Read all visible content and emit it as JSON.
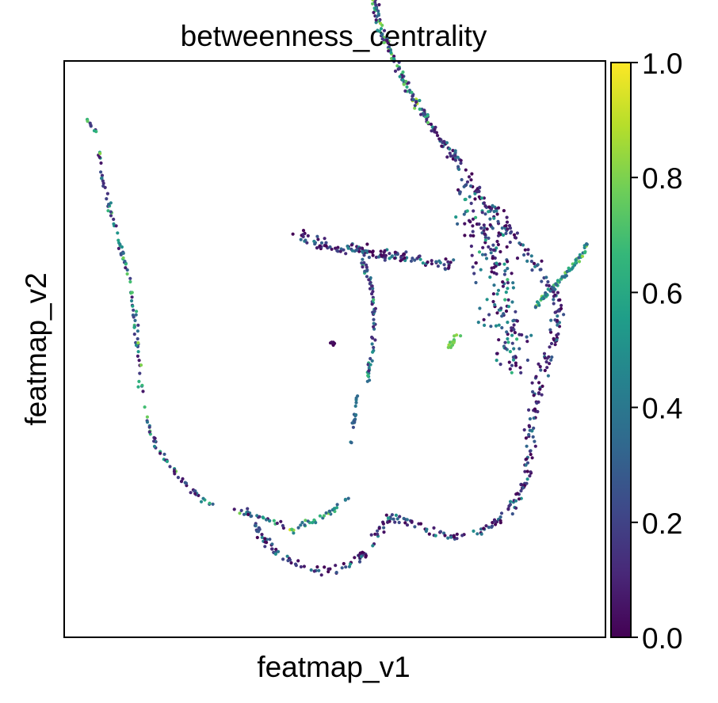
{
  "chart_data": {
    "type": "scatter",
    "title": "betweenness_centrality",
    "xlabel": "featmap_v1",
    "ylabel": "featmap_v2",
    "xlim": [
      0,
      100
    ],
    "ylim": [
      0,
      100
    ],
    "xticks_shown": false,
    "yticks_shown": false,
    "grid": false,
    "colorbar": {
      "colormap": "viridis",
      "range": [
        0.0,
        1.0
      ],
      "ticks": [
        0.0,
        0.2,
        0.4,
        0.6,
        0.8,
        1.0
      ],
      "tick_labels": [
        "0.0",
        "0.2",
        "0.4",
        "0.6",
        "0.8",
        "1.0"
      ],
      "placement": "right"
    },
    "colors": {
      "viridis_stops": [
        "#440154",
        "#482878",
        "#3e4989",
        "#31688e",
        "#26828e",
        "#1f9e89",
        "#35b779",
        "#6ece58",
        "#b5de2b",
        "#fde725"
      ]
    },
    "series": [
      {
        "structure": "left arm down to bottom curve",
        "path": [
          [
            4.5,
            90
          ],
          [
            6,
            87
          ],
          [
            6.5,
            84
          ],
          [
            7,
            80
          ],
          [
            8,
            76
          ],
          [
            9,
            72
          ],
          [
            10,
            69
          ],
          [
            11,
            66
          ],
          [
            12,
            62
          ],
          [
            12.7,
            58
          ],
          [
            13.2,
            54
          ],
          [
            13.6,
            50
          ],
          [
            14,
            46
          ],
          [
            14.5,
            42
          ],
          [
            15.2,
            38
          ],
          [
            16.5,
            34
          ],
          [
            18.5,
            31
          ],
          [
            20.5,
            28.5
          ],
          [
            23,
            26
          ],
          [
            25.5,
            24
          ],
          [
            28,
            22.5
          ],
          [
            31,
            22
          ],
          [
            34,
            21.5
          ],
          [
            37,
            20.5
          ],
          [
            40,
            19.5
          ],
          [
            42,
            18.5
          ]
        ],
        "count": 170,
        "spread": 0.35,
        "value_range": [
          0.05,
          0.85
        ]
      },
      {
        "structure": "bottom loop lower lobe",
        "path": [
          [
            34,
            21.5
          ],
          [
            36,
            18
          ],
          [
            39,
            15
          ],
          [
            42,
            13
          ],
          [
            45,
            12
          ],
          [
            48,
            11.5
          ],
          [
            51,
            11.8
          ],
          [
            54,
            13
          ],
          [
            56,
            15
          ],
          [
            57.5,
            17.5
          ],
          [
            58.5,
            19
          ],
          [
            60,
            20.5
          ],
          [
            62,
            20.5
          ],
          [
            64,
            20
          ],
          [
            66,
            19
          ],
          [
            68,
            18
          ],
          [
            71,
            17.5
          ],
          [
            74,
            17.8
          ],
          [
            77,
            18.5
          ],
          [
            80,
            20
          ],
          [
            82,
            22
          ],
          [
            84,
            24.5
          ],
          [
            85.5,
            27.5
          ]
        ],
        "count": 190,
        "spread": 0.6,
        "value_range": [
          0.0,
          0.55
        ]
      },
      {
        "structure": "bottom loop upper bridge",
        "path": [
          [
            42,
            18.5
          ],
          [
            45,
            20
          ],
          [
            48,
            21
          ],
          [
            50,
            22.5
          ],
          [
            52,
            24
          ],
          [
            53,
            24.5
          ]
        ],
        "count": 35,
        "spread": 0.5,
        "value_range": [
          0.3,
          0.95
        ]
      },
      {
        "structure": "right lobe outer edge",
        "path": [
          [
            85.5,
            27.5
          ],
          [
            86.2,
            32
          ],
          [
            86.5,
            36
          ],
          [
            87,
            40
          ],
          [
            88,
            44
          ],
          [
            89,
            48
          ],
          [
            90.5,
            52
          ],
          [
            91.5,
            56
          ],
          [
            91,
            59
          ],
          [
            89.5,
            61.5
          ],
          [
            88,
            64
          ],
          [
            86,
            66
          ],
          [
            84,
            68
          ],
          [
            82,
            71
          ],
          [
            79.5,
            74
          ],
          [
            77,
            76.5
          ],
          [
            75,
            79
          ],
          [
            73,
            82
          ],
          [
            71,
            85
          ],
          [
            69,
            87
          ]
        ],
        "count": 230,
        "spread": 0.9,
        "value_range": [
          0.0,
          0.45
        ]
      },
      {
        "structure": "right lobe interior cloud",
        "path": [
          [
            74,
            78
          ],
          [
            76,
            74
          ],
          [
            78,
            70
          ],
          [
            79,
            66
          ],
          [
            80,
            62
          ],
          [
            81,
            58
          ],
          [
            82,
            54
          ],
          [
            83,
            50
          ],
          [
            84,
            46
          ]
        ],
        "count": 200,
        "spread": 3.2,
        "value_range": [
          0.0,
          0.7
        ]
      },
      {
        "structure": "upper right arm",
        "path": [
          [
            69,
            87
          ],
          [
            67,
            90
          ],
          [
            65,
            93
          ],
          [
            63,
            96
          ],
          [
            61,
            100
          ],
          [
            59,
            104
          ],
          [
            58,
            107
          ],
          [
            57.5,
            110
          ],
          [
            57.5,
            113
          ],
          [
            58,
            115
          ],
          [
            59,
            114.5
          ]
        ],
        "count": 170,
        "spread": 0.5,
        "value_range": [
          0.05,
          0.9
        ]
      },
      {
        "structure": "right spike",
        "path": [
          [
            87,
            57
          ],
          [
            88.5,
            59
          ],
          [
            90.5,
            61
          ],
          [
            92.5,
            63
          ],
          [
            94.5,
            65
          ],
          [
            96,
            67
          ],
          [
            96.5,
            68.5
          ]
        ],
        "count": 70,
        "spread": 0.35,
        "value_range": [
          0.3,
          0.85
        ]
      },
      {
        "structure": "upper center horizontal branch",
        "path": [
          [
            43.5,
            69.5
          ],
          [
            46,
            68.5
          ],
          [
            49,
            68
          ],
          [
            52,
            67.5
          ],
          [
            55,
            67
          ],
          [
            58,
            66.5
          ],
          [
            61,
            66
          ],
          [
            64,
            66
          ],
          [
            67,
            65.5
          ],
          [
            70,
            65
          ],
          [
            72,
            64.5
          ]
        ],
        "count": 140,
        "spread": 0.9,
        "value_range": [
          0.0,
          0.55
        ]
      },
      {
        "structure": "central descending branch",
        "path": [
          [
            55,
            65.5
          ],
          [
            56.5,
            62
          ],
          [
            57.2,
            58
          ],
          [
            57.3,
            54
          ],
          [
            57,
            50
          ],
          [
            56.5,
            47
          ],
          [
            56,
            44
          ]
        ],
        "count": 65,
        "spread": 0.35,
        "value_range": [
          0.1,
          0.7
        ]
      },
      {
        "structure": "short lower central segment",
        "path": [
          [
            54,
            42
          ],
          [
            53.7,
            39
          ],
          [
            53.2,
            36
          ],
          [
            52.8,
            34
          ]
        ],
        "count": 20,
        "spread": 0.3,
        "value_range": [
          0.2,
          0.5
        ]
      },
      {
        "structure": "isolated cluster",
        "path": [
          [
            49.4,
            51
          ],
          [
            49.7,
            51
          ]
        ],
        "count": 14,
        "spread": 0.25,
        "value_range": [
          0.0,
          0.05
        ]
      },
      {
        "structure": "bright green offshoot",
        "path": [
          [
            71,
            50
          ],
          [
            72,
            51.5
          ],
          [
            73.3,
            53
          ]
        ],
        "count": 14,
        "spread": 0.3,
        "value_range": [
          0.72,
          0.88
        ]
      }
    ]
  }
}
